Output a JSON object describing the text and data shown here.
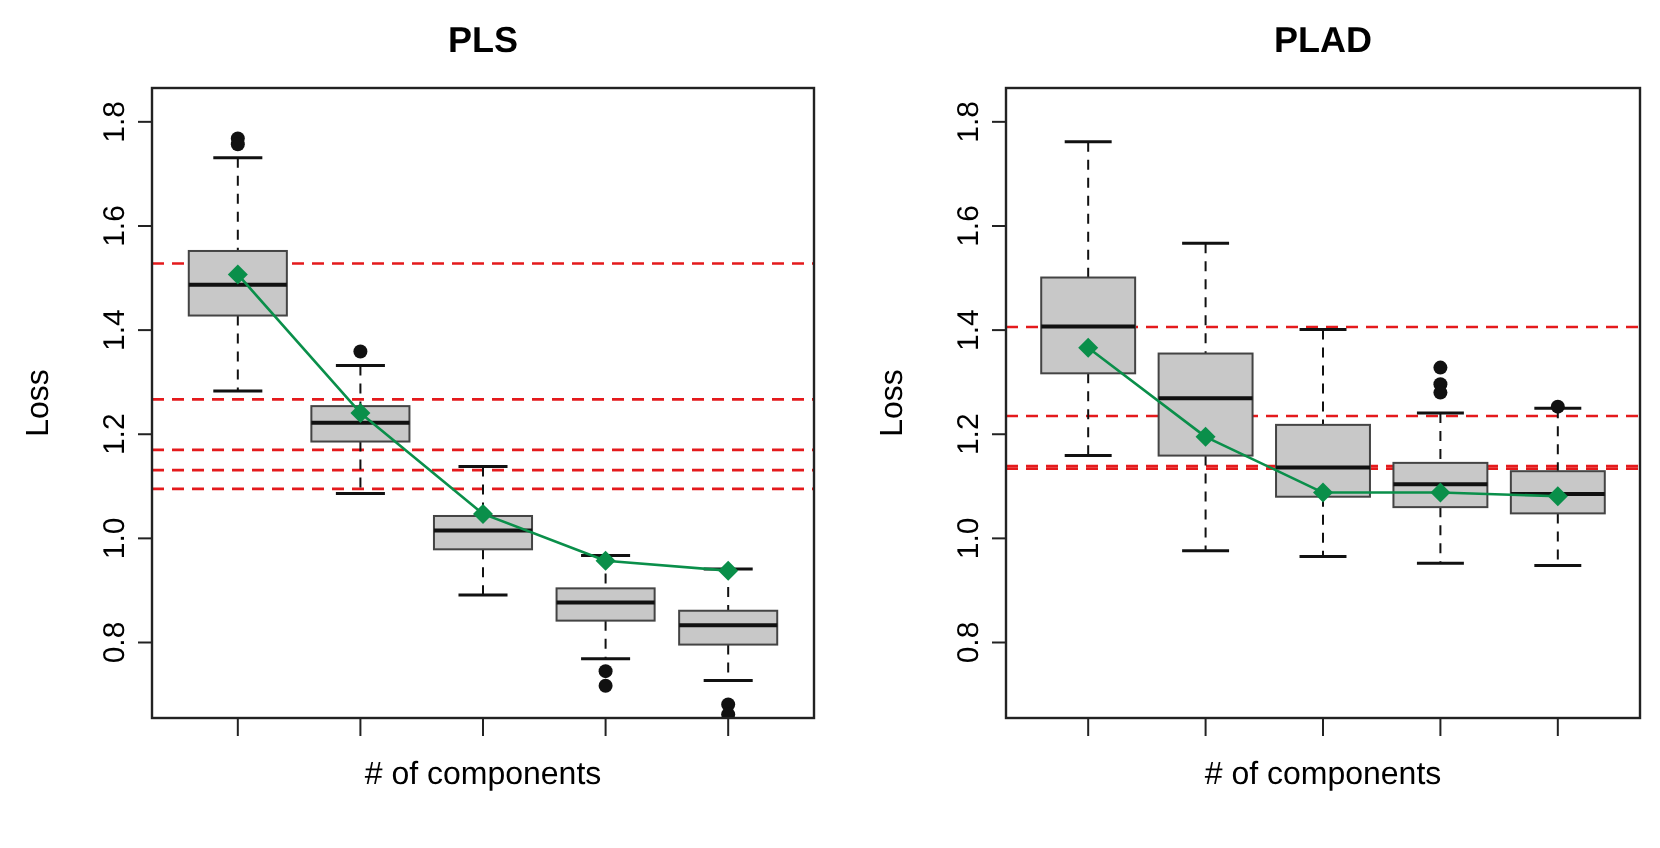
{
  "chart_data": [
    {
      "type": "box",
      "title": "PLS",
      "xlabel": "# of components",
      "ylabel": "Loss",
      "categories": [
        null,
        null,
        null,
        null,
        null
      ],
      "ylim": [
        0.655,
        1.865
      ],
      "yticks": [
        0.8,
        {
          "value": 1,
          "label": "1.0"
        },
        1.2,
        1.4,
        1.6,
        1.8
      ],
      "tick_labels": "y",
      "grid": false,
      "series": [
        {
          "type": "box",
          "color": "#c8c8c8",
          "boxes": [
            {
              "low": 1.283,
              "q1": 1.428,
              "median": 1.487,
              "q3": 1.552,
              "high": 1.731,
              "outliers": [
                1.768,
                1.757
              ]
            },
            {
              "low": 1.086,
              "q1": 1.186,
              "median": 1.222,
              "q3": 1.254,
              "high": 1.332,
              "outliers": [
                1.359
              ]
            },
            {
              "low": 0.891,
              "q1": 0.979,
              "median": 1.015,
              "q3": 1.043,
              "high": 1.138
            },
            {
              "low": 0.769,
              "q1": 0.842,
              "median": 0.877,
              "q3": 0.904,
              "high": 0.967,
              "outliers": [
                0.745,
                0.717
              ]
            },
            {
              "low": 0.727,
              "q1": 0.796,
              "median": 0.833,
              "q3": 0.861,
              "high": 0.941,
              "outliers": [
                0.681,
                0.662
              ]
            }
          ]
        },
        {
          "type": "line",
          "color": "#0a8f4a",
          "marker": "diamond",
          "values": [
            1.507,
            1.241,
            1.047,
            0.957,
            0.938
          ]
        }
      ],
      "ref_lines": [
        {
          "axis": "y",
          "value": 1.528,
          "color": "#e41a1c",
          "line_style": "dashed"
        },
        {
          "axis": "y",
          "value": 1.267,
          "color": "#e41a1c",
          "line_style": "dashed"
        },
        {
          "axis": "y",
          "value": 1.17,
          "color": "#e41a1c",
          "line_style": "dashed"
        },
        {
          "axis": "y",
          "value": 1.131,
          "color": "#e41a1c",
          "line_style": "dashed"
        },
        {
          "axis": "y",
          "value": 1.095,
          "color": "#e41a1c",
          "line_style": "dashed"
        }
      ]
    },
    {
      "type": "box",
      "title": "PLAD",
      "xlabel": "# of components",
      "ylabel": "Loss",
      "categories": [
        null,
        null,
        null,
        null,
        null
      ],
      "ylim": [
        0.655,
        1.865
      ],
      "yticks": [
        0.8,
        {
          "value": 1,
          "label": "1.0"
        },
        1.2,
        1.4,
        1.6,
        1.8
      ],
      "tick_labels": "y",
      "grid": false,
      "series": [
        {
          "type": "box",
          "color": "#c8c8c8",
          "boxes": [
            {
              "low": 1.159,
              "q1": 1.317,
              "median": 1.407,
              "q3": 1.501,
              "high": 1.762
            },
            {
              "low": 0.976,
              "q1": 1.159,
              "median": 1.269,
              "q3": 1.355,
              "high": 1.567
            },
            {
              "low": 0.965,
              "q1": 1.08,
              "median": 1.136,
              "q3": 1.218,
              "high": 1.401
            },
            {
              "low": 0.952,
              "q1": 1.06,
              "median": 1.104,
              "q3": 1.145,
              "high": 1.241,
              "outliers": [
                1.328,
                1.296,
                1.28
              ]
            },
            {
              "low": 0.948,
              "q1": 1.048,
              "median": 1.085,
              "q3": 1.129,
              "high": 1.25,
              "outliers": [
                1.253
              ]
            }
          ]
        },
        {
          "type": "line",
          "color": "#0a8f4a",
          "marker": "diamond",
          "values": [
            1.366,
            1.195,
            1.088,
            1.088,
            1.081
          ]
        }
      ],
      "ref_lines": [
        {
          "axis": "y",
          "value": 1.406,
          "color": "#e41a1c",
          "line_style": "dashed"
        },
        {
          "axis": "y",
          "value": 1.235,
          "color": "#e41a1c",
          "line_style": "dashed"
        },
        {
          "axis": "y",
          "value": 1.139,
          "color": "#e41a1c",
          "line_style": "dashed"
        },
        {
          "axis": "y",
          "value": 1.134,
          "color": "#e41a1c",
          "line_style": "dashed"
        }
      ]
    }
  ]
}
